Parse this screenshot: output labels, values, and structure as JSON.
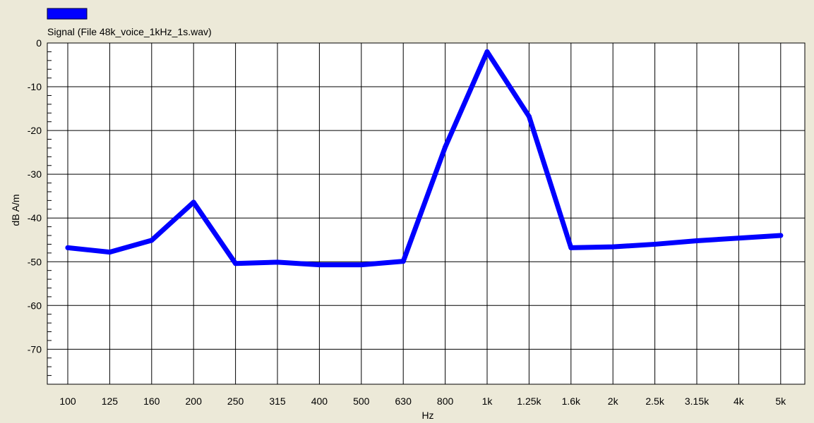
{
  "chart_data": {
    "type": "line",
    "title": "",
    "xlabel": "Hz",
    "ylabel": "dB A/m",
    "ylim": [
      -78,
      0
    ],
    "yticks": [
      0,
      -10,
      -20,
      -30,
      -40,
      -50,
      -60,
      -70
    ],
    "ytick_labels": [
      "0",
      "-10",
      "-20",
      "-30",
      "-40",
      "-50",
      "-60",
      "-70"
    ],
    "categories": [
      "100",
      "125",
      "160",
      "200",
      "250",
      "315",
      "400",
      "500",
      "630",
      "800",
      "1k",
      "1.25k",
      "1.6k",
      "2k",
      "2.5k",
      "3.15k",
      "4k",
      "5k"
    ],
    "grid": true,
    "legend_position": "top-left",
    "series": [
      {
        "name": "Signal (File 48k_voice_1kHz_1s.wav)",
        "color": "#0000ff",
        "values": [
          -46.8,
          -47.8,
          -45.1,
          -36.4,
          -50.4,
          -50.1,
          -50.7,
          -50.7,
          -49.9,
          -23.8,
          -2.0,
          -16.8,
          -46.8,
          -46.6,
          -46.0,
          -45.2,
          -44.6,
          -44.0
        ]
      }
    ]
  }
}
